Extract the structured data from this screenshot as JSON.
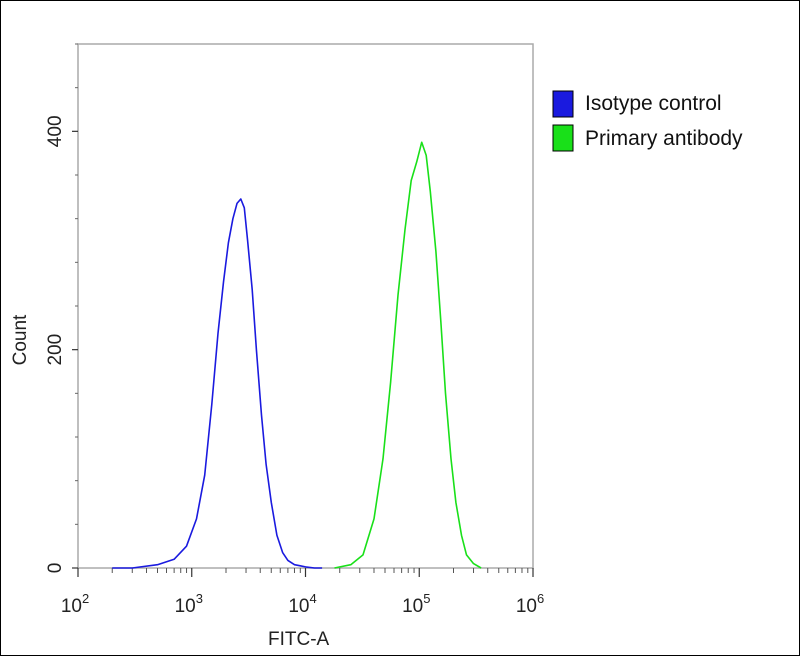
{
  "chart_data": {
    "type": "line",
    "xscale": "log",
    "xlabel": "FITC-A",
    "ylabel": "Count",
    "xlim": [
      100,
      1000000
    ],
    "ylim": [
      0,
      480
    ],
    "y_ticks": [
      0,
      200,
      400
    ],
    "x_tick_labels": [
      {
        "value": 100,
        "base": "10",
        "exp": "2"
      },
      {
        "value": 1000,
        "base": "10",
        "exp": "3"
      },
      {
        "value": 10000,
        "base": "10",
        "exp": "4"
      },
      {
        "value": 100000,
        "base": "10",
        "exp": "5"
      },
      {
        "value": 1000000,
        "base": "10",
        "exp": "6"
      }
    ],
    "grid": false,
    "legend_position": "top-right",
    "series": [
      {
        "name": "Isotype control",
        "color": "#1a1adf",
        "x": [
          200,
          300,
          500,
          700,
          900,
          1100,
          1300,
          1500,
          1700,
          1900,
          2100,
          2300,
          2500,
          2700,
          2900,
          3100,
          3400,
          3700,
          4100,
          4500,
          5000,
          5600,
          6300,
          7000,
          8000,
          9000,
          10000,
          12000,
          14000
        ],
        "y": [
          0,
          0,
          3,
          8,
          20,
          45,
          85,
          150,
          215,
          262,
          298,
          320,
          334,
          338,
          330,
          300,
          255,
          200,
          140,
          95,
          60,
          30,
          14,
          7,
          3,
          2,
          1,
          0,
          0
        ]
      },
      {
        "name": "Primary antibody",
        "color": "#19e019",
        "x": [
          18000,
          25000,
          32000,
          40000,
          48000,
          56000,
          65000,
          75000,
          85000,
          95000,
          105000,
          115000,
          125000,
          140000,
          155000,
          170000,
          190000,
          210000,
          235000,
          260000,
          300000,
          350000
        ],
        "y": [
          0,
          3,
          12,
          45,
          100,
          170,
          250,
          310,
          355,
          372,
          390,
          378,
          345,
          290,
          225,
          160,
          100,
          60,
          30,
          12,
          4,
          0
        ]
      }
    ]
  }
}
